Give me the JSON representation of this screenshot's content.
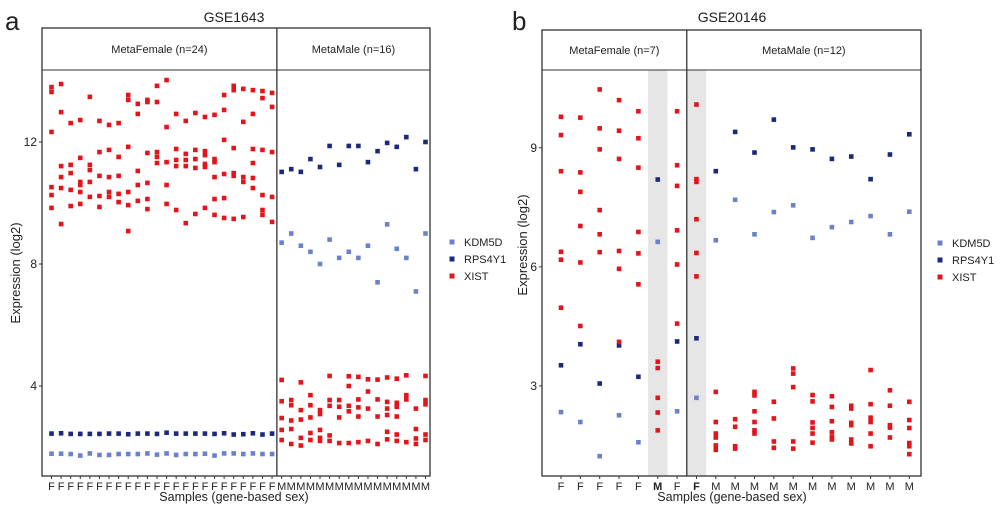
{
  "legend": {
    "items": [
      "KDM5D",
      "RPS4Y1",
      "XIST"
    ],
    "colors": {
      "KDM5D": "#6b82c9",
      "RPS4Y1": "#1c2878",
      "XIST": "#e3141b"
    }
  },
  "chart_data": [
    {
      "panel_label": "a",
      "type": "scatter",
      "title": "GSE1643",
      "xlabel": "Samples (gene-based sex)",
      "ylabel": "Expression (log2)",
      "yticks": [
        4,
        8,
        12
      ],
      "ylim": [
        1.05,
        14.36
      ],
      "legend_position": "right",
      "grid": false,
      "facets": [
        {
          "label": "MetaFemale (n=24)",
          "count": 24
        },
        {
          "label": "MetaMale (n=16)",
          "count": 16
        }
      ],
      "categories": [
        "F",
        "F",
        "F",
        "F",
        "F",
        "F",
        "F",
        "F",
        "F",
        "F",
        "F",
        "F",
        "F",
        "F",
        "F",
        "F",
        "F",
        "F",
        "F",
        "F",
        "F",
        "F",
        "F",
        "F",
        "M",
        "M",
        "M",
        "M",
        "M",
        "M",
        "M",
        "M",
        "M",
        "M",
        "M",
        "M",
        "M",
        "M",
        "M",
        "M"
      ],
      "highlighted": [],
      "series": [
        {
          "name": "KDM5D",
          "values": [
            [
              1.78
            ],
            [
              1.78
            ],
            [
              1.77
            ],
            [
              1.72
            ],
            [
              1.79
            ],
            [
              1.74
            ],
            [
              1.74
            ],
            [
              1.77
            ],
            [
              1.77
            ],
            [
              1.77
            ],
            [
              1.79
            ],
            [
              1.75
            ],
            [
              1.79
            ],
            [
              1.74
            ],
            [
              1.77
            ],
            [
              1.77
            ],
            [
              1.78
            ],
            [
              1.72
            ],
            [
              1.79
            ],
            [
              1.79
            ],
            [
              1.77
            ],
            [
              1.79
            ],
            [
              1.77
            ],
            [
              1.77
            ],
            [
              8.7
            ],
            [
              9.0
            ],
            [
              8.6
            ],
            [
              8.4
            ],
            [
              8.0
            ],
            [
              8.8
            ],
            [
              8.2
            ],
            [
              8.4
            ],
            [
              8.2
            ],
            [
              8.6
            ],
            [
              7.4
            ],
            [
              9.3
            ],
            [
              8.5
            ],
            [
              8.2
            ],
            [
              7.1
            ],
            [
              9.0
            ]
          ]
        },
        {
          "name": "RPS4Y1",
          "values": [
            [
              2.44
            ],
            [
              2.45
            ],
            [
              2.43
            ],
            [
              2.43
            ],
            [
              2.43
            ],
            [
              2.43
            ],
            [
              2.44
            ],
            [
              2.44
            ],
            [
              2.42
            ],
            [
              2.44
            ],
            [
              2.44
            ],
            [
              2.43
            ],
            [
              2.47
            ],
            [
              2.44
            ],
            [
              2.44
            ],
            [
              2.44
            ],
            [
              2.44
            ],
            [
              2.43
            ],
            [
              2.45
            ],
            [
              2.41
            ],
            [
              2.42
            ],
            [
              2.45
            ],
            [
              2.41
            ],
            [
              2.44
            ],
            [
              11.02
            ],
            [
              11.11
            ],
            [
              11.02
            ],
            [
              11.44
            ],
            [
              11.18
            ],
            [
              11.87
            ],
            [
              11.25
            ],
            [
              11.87
            ],
            [
              11.87
            ],
            [
              11.34
            ],
            [
              11.7
            ],
            [
              11.97
            ],
            [
              11.84
            ],
            [
              12.16
            ],
            [
              11.11
            ],
            [
              12.0
            ]
          ]
        },
        {
          "name": "XIST",
          "values": [
            [
              13.8,
              13.64,
              12.33,
              10.52,
              10.26,
              9.84
            ],
            [
              13.9,
              12.98,
              11.21,
              10.85,
              10.49,
              9.31
            ],
            [
              12.62,
              11.25,
              10.98,
              10.43,
              9.9
            ],
            [
              12.72,
              11.48,
              10.69,
              10.59,
              10.36,
              9.97
            ],
            [
              13.48,
              11.25,
              11.08,
              10.69,
              10.2
            ],
            [
              12.69,
              11.67,
              10.89,
              10.23,
              9.87
            ],
            [
              12.56,
              11.74,
              10.85,
              10.36,
              10.2
            ],
            [
              12.62,
              11.51,
              10.89,
              10.3,
              10.03
            ],
            [
              13.54,
              13.38,
              11.84,
              10.36,
              9.93,
              9.08
            ],
            [
              13.25,
              12.92,
              11.05,
              10.59,
              10.07
            ],
            [
              13.38,
              13.31,
              11.64,
              10.66,
              10.13,
              9.8
            ],
            [
              13.84,
              13.31,
              11.67,
              11.51,
              11.31
            ],
            [
              14.03,
              12.49,
              11.34,
              10.59,
              9.97
            ],
            [
              12.92,
              11.77,
              11.41,
              11.21,
              9.77
            ],
            [
              12.69,
              11.61,
              11.41,
              11.21,
              9.34
            ],
            [
              12.95,
              11.74,
              11.44,
              11.15,
              9.64
            ],
            [
              12.82,
              11.7,
              11.57,
              11.28,
              11.18,
              9.84
            ],
            [
              12.89,
              11.44,
              11.34,
              10.85,
              10.13,
              9.61
            ],
            [
              13.54,
              13.05,
              12.07,
              10.95,
              10.16,
              9.51
            ],
            [
              13.84,
              13.7,
              11.8,
              10.98,
              10.89,
              9.48
            ],
            [
              13.74,
              12.66,
              10.85,
              10.69,
              9.54
            ],
            [
              13.7,
              12.92,
              11.77,
              11.31,
              10.82,
              10.49
            ],
            [
              13.67,
              13.44,
              11.74,
              10.26,
              9.77,
              9.61
            ],
            [
              13.61,
              13.15,
              11.67,
              10.2,
              9.38
            ],
            [
              4.2,
              3.5,
              2.95,
              2.56,
              2.23
            ],
            [
              3.54,
              3.37,
              2.87,
              2.59,
              2.1
            ],
            [
              4.12,
              3.21,
              2.9,
              2.3,
              2.05
            ],
            [
              3.7,
              3.37,
              2.97,
              2.46,
              2.23
            ],
            [
              3.21,
              3.08,
              2.56,
              2.3,
              2.2
            ],
            [
              4.33,
              3.54,
              3.35,
              2.38,
              2.2
            ],
            [
              3.54,
              3.32,
              2.97,
              2.13
            ],
            [
              4.32,
              4.0,
              3.35,
              3.17,
              2.13
            ],
            [
              4.3,
              3.56,
              3.3,
              3.0,
              2.16
            ],
            [
              4.22,
              3.82,
              3.26,
              2.2
            ],
            [
              4.21,
              3.56,
              3.0,
              2.1
            ],
            [
              4.28,
              3.48,
              3.26,
              3.05,
              2.5,
              2.25
            ],
            [
              4.24,
              3.45,
              3.32,
              3.0,
              2.41,
              2.2
            ],
            [
              4.35,
              3.7,
              3.56,
              2.16
            ],
            [
              3.26,
              2.59,
              2.28,
              2.1
            ],
            [
              4.33,
              3.54,
              3.4,
              2.41,
              2.23
            ]
          ]
        }
      ]
    },
    {
      "panel_label": "b",
      "type": "scatter",
      "title": "GSE20146",
      "xlabel": "Samples (gene-based sex)",
      "ylabel": "Expression (log2)",
      "yticks": [
        3,
        6,
        9
      ],
      "ylim": [
        0.73,
        10.96
      ],
      "legend_position": "right",
      "grid": false,
      "facets": [
        {
          "label": "MetaFemale (n=7)",
          "count": 7
        },
        {
          "label": "MetaMale (n=12)",
          "count": 12
        }
      ],
      "categories": [
        "F",
        "F",
        "F",
        "F",
        "F",
        "M",
        "F",
        "F",
        "M",
        "M",
        "M",
        "M",
        "M",
        "M",
        "M",
        "M",
        "M",
        "M",
        "M"
      ],
      "highlighted": [
        5,
        7
      ],
      "series": [
        {
          "name": "KDM5D",
          "values": [
            [
              2.34
            ],
            [
              2.09
            ],
            [
              1.23
            ],
            [
              2.26
            ],
            [
              1.58
            ],
            [
              6.63
            ],
            [
              2.36
            ],
            [
              2.7
            ],
            [
              6.67
            ],
            [
              7.69
            ],
            [
              6.82
            ],
            [
              7.38
            ],
            [
              7.55
            ],
            [
              6.73
            ],
            [
              7.0
            ],
            [
              7.13
            ],
            [
              7.28
            ],
            [
              6.82
            ],
            [
              7.39
            ]
          ]
        },
        {
          "name": "RPS4Y1",
          "values": [
            [
              3.52
            ],
            [
              4.05
            ],
            [
              3.06
            ],
            [
              4.02
            ],
            [
              3.23
            ],
            [
              8.2
            ],
            [
              4.12
            ],
            [
              4.2
            ],
            [
              8.41
            ],
            [
              9.4
            ],
            [
              8.88
            ],
            [
              9.71
            ],
            [
              9.01
            ],
            [
              8.96
            ],
            [
              8.72
            ],
            [
              8.78
            ],
            [
              8.21
            ],
            [
              8.83
            ],
            [
              9.34
            ]
          ]
        },
        {
          "name": "XIST",
          "values": [
            [
              9.78,
              9.32,
              8.41,
              6.38,
              6.18,
              4.97
            ],
            [
              9.76,
              8.38,
              7.89,
              7.03,
              6.11,
              4.51
            ],
            [
              10.47,
              9.49,
              8.96,
              7.43,
              6.82,
              6.37
            ],
            [
              10.2,
              9.43,
              8.72,
              6.4,
              5.95,
              4.11
            ],
            [
              9.92,
              9.24,
              8.5,
              6.88,
              6.34,
              5.56
            ],
            [
              3.61,
              3.45,
              2.7,
              2.33,
              1.88
            ],
            [
              9.92,
              8.56,
              8.04,
              6.92,
              6.06,
              4.57
            ],
            [
              10.09,
              8.21,
              8.14,
              7.2,
              6.35,
              5.76
            ],
            [
              2.85,
              2.09,
              1.8,
              1.7,
              1.5,
              1.39
            ],
            [
              2.16,
              1.97,
              1.48,
              1.42
            ],
            [
              2.85,
              2.76,
              2.36,
              2.09,
              1.88,
              1.8
            ],
            [
              2.6,
              2.18,
              1.6,
              1.44
            ],
            [
              3.44,
              3.31,
              2.97,
              1.6,
              1.42
            ],
            [
              2.77,
              2.61,
              2.08,
              1.94,
              1.8,
              1.57
            ],
            [
              2.74,
              2.47,
              2.11,
              1.83,
              1.71,
              1.65
            ],
            [
              2.5,
              2.43,
              2.07,
              2.01,
              1.65,
              1.55
            ],
            [
              3.4,
              2.54,
              2.2,
              2.09,
              1.8,
              1.48
            ],
            [
              2.89,
              2.5,
              2.01,
              1.95,
              1.7
            ],
            [
              2.6,
              2.14,
              1.94,
              1.56,
              1.48,
              1.28
            ]
          ]
        }
      ]
    }
  ]
}
